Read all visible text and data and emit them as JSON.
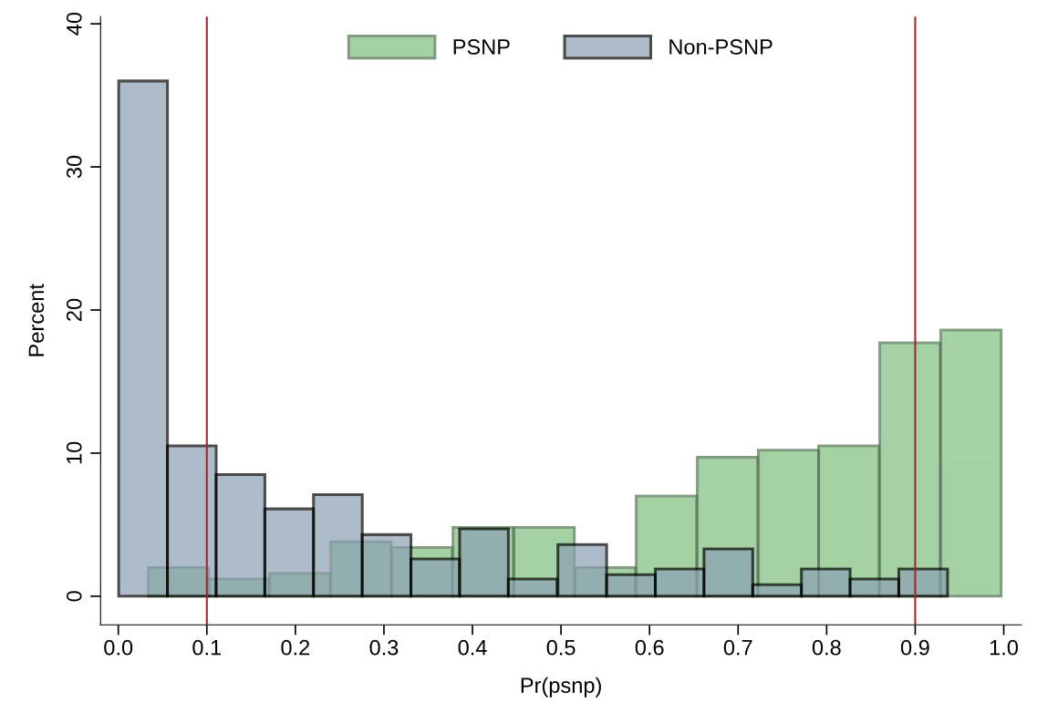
{
  "chart_data": {
    "type": "bar",
    "xlabel": "Pr(psnp)",
    "ylabel": "Percent",
    "xlim": [
      -0.02,
      1.02
    ],
    "ylim": [
      -2,
      40.5
    ],
    "xticks": [
      {
        "value": 0,
        "label": "0.0"
      },
      0.1,
      0.2,
      0.3,
      0.4,
      0.5,
      0.6,
      0.7,
      0.8,
      0.9,
      {
        "value": 1,
        "label": "1.0"
      }
    ],
    "yticks": [
      0,
      10,
      20,
      30,
      40
    ],
    "grid": false,
    "legend": "top",
    "series": [
      {
        "name": "PSNP",
        "color": "#80c080",
        "x": [
          0.068,
          0.136,
          0.205,
          0.274,
          0.343,
          0.412,
          0.481,
          0.55,
          0.619,
          0.688,
          0.757,
          0.825,
          0.894,
          0.963
        ],
        "values": [
          2.0,
          1.2,
          1.6,
          3.8,
          3.4,
          4.8,
          4.8,
          2.0,
          7.0,
          9.7,
          10.2,
          10.5,
          17.7,
          18.6
        ]
      },
      {
        "name": "Non-PSNP",
        "color": "#8ca0b4",
        "x": [
          0.028,
          0.083,
          0.138,
          0.193,
          0.248,
          0.303,
          0.358,
          0.413,
          0.468,
          0.524,
          0.579,
          0.634,
          0.689,
          0.744,
          0.799,
          0.854,
          0.909
        ],
        "values": [
          36.0,
          10.5,
          8.5,
          6.1,
          7.1,
          4.3,
          2.6,
          4.7,
          1.2,
          3.6,
          1.5,
          1.9,
          3.3,
          0.8,
          1.9,
          1.2,
          1.9
        ]
      }
    ],
    "ref_lines": [
      {
        "axis": "x",
        "value": 0.1,
        "color": "#a0282d"
      },
      {
        "axis": "x",
        "value": 0.9,
        "color": "#a0282d"
      }
    ]
  }
}
